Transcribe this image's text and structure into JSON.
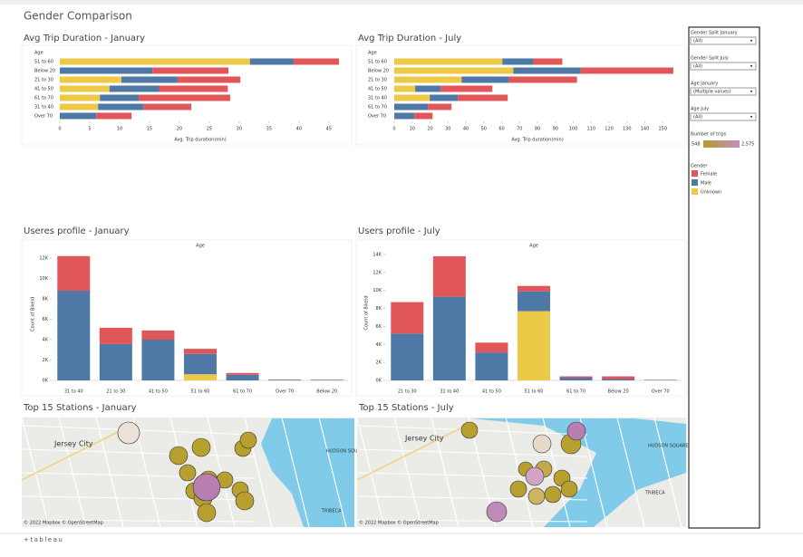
{
  "dashboard": {
    "title": "Gender Comparison",
    "footer": "+tableau",
    "filters": [
      {
        "label": "Gender Split January",
        "value": "(All)"
      },
      {
        "label": "Gender Split July",
        "value": "(All)"
      },
      {
        "label": "Age January",
        "value": "(Multiple values)"
      },
      {
        "label": "Age July",
        "value": "(All)"
      }
    ],
    "trips_legend": {
      "title": "Number of trips",
      "range": [
        {
          "value": 548,
          "label": "548"
        },
        {
          "value": 2575,
          "label": "2,575"
        }
      ]
    },
    "gender_legend_title": "Gender",
    "maps": [
      {
        "title": "Top 15 Stations - January",
        "labels": [
          "Jersey City",
          "HUDSON SQUARE",
          "TRIBECA"
        ],
        "credit": "© 2022 Mapbox © OpenStreetMap"
      },
      {
        "title": "Top 15 Stations - July",
        "labels": [
          "Jersey City",
          "HUDSON SQUARE",
          "TRIBECA"
        ],
        "credit": "© 2022 Mapbox © OpenStreetMap"
      }
    ]
  },
  "chart_data": [
    {
      "type": "bar",
      "orientation": "horizontal",
      "title": "Avg Trip Duration - January",
      "header": "Age",
      "xlabel": "Avg. Trip duration(min)",
      "categories": [
        "51 to 60",
        "Below 20",
        "21 to 30",
        "41 to 50",
        "61 to 70",
        "31 to 40",
        "Over 70"
      ],
      "series": [
        {
          "name": "Female",
          "color": "#e15759",
          "values": [
            7.6,
            12.7,
            10.5,
            11.5,
            15.3,
            8.0,
            5.9
          ]
        },
        {
          "name": "Male",
          "color": "#4e79a7",
          "values": [
            7.3,
            15.5,
            9.4,
            8.3,
            6.5,
            7.6,
            6.1
          ]
        },
        {
          "name": "Unknown",
          "color": "#edc948",
          "values": [
            31.8,
            null,
            10.3,
            8.3,
            6.7,
            6.4,
            null
          ]
        }
      ],
      "xlim": [
        0,
        47
      ],
      "xticks": [
        0,
        5,
        10,
        15,
        20,
        25,
        30,
        35,
        40,
        45
      ]
    },
    {
      "type": "bar",
      "orientation": "horizontal",
      "title": "Avg Trip Duration - July",
      "header": "Age",
      "xlabel": "Avg. Trip duration(min)",
      "categories": [
        "51 to 60",
        "Below 20",
        "21 to 30",
        "41 to 50",
        "31 to 40",
        "61 to 70",
        "Over 70"
      ],
      "series": [
        {
          "name": "Female",
          "color": "#e15759",
          "values": [
            16.2,
            51.8,
            38.1,
            28.9,
            27.9,
            13.2,
            10.2
          ]
        },
        {
          "name": "Male",
          "color": "#4e79a7",
          "values": [
            17.3,
            37.6,
            26.4,
            14.2,
            15.7,
            18.8,
            11.2
          ]
        },
        {
          "name": "Unknown",
          "color": "#edc948",
          "values": [
            60.4,
            66.5,
            37.6,
            11.7,
            19.8,
            null,
            null
          ]
        }
      ],
      "xlim": [
        0,
        160
      ],
      "xticks": [
        0,
        10,
        20,
        30,
        40,
        50,
        60,
        70,
        80,
        90,
        100,
        110,
        120,
        130,
        140,
        150
      ]
    },
    {
      "type": "bar",
      "orientation": "vertical",
      "title": "Useres profile - January",
      "header": "Age",
      "ylabel": "Count of Bikeid",
      "categories": [
        "31 to 40",
        "21 to 30",
        "41 to 50",
        "51 to 60",
        "61 to 70",
        "Over 70",
        "Below 20"
      ],
      "series": [
        {
          "name": "Female",
          "color": "#e15759",
          "values": [
            3400,
            1600,
            900,
            500,
            180,
            30,
            20
          ]
        },
        {
          "name": "Male",
          "color": "#4e79a7",
          "values": [
            8800,
            3560,
            4000,
            2000,
            550,
            60,
            50
          ]
        },
        {
          "name": "Unknown",
          "color": "#edc948",
          "values": [
            null,
            null,
            null,
            600,
            null,
            null,
            null
          ]
        }
      ],
      "ylim": [
        0,
        13000
      ],
      "yticks": [
        {
          "value": 0,
          "label": "0K"
        },
        {
          "value": 2000,
          "label": "2K"
        },
        {
          "value": 4000,
          "label": "4K"
        },
        {
          "value": 6000,
          "label": "6K"
        },
        {
          "value": 8000,
          "label": "8K"
        },
        {
          "value": 10000,
          "label": "10K"
        },
        {
          "value": 12000,
          "label": "12K"
        }
      ]
    },
    {
      "type": "bar",
      "orientation": "vertical",
      "title": "Users profile - July",
      "header": "Age",
      "ylabel": "Count of Bikeid",
      "categories": [
        "21 to 30",
        "31 to 40",
        "41 to 50",
        "51 to 60",
        "61 to 70",
        "Below 20",
        "Over 70"
      ],
      "series": [
        {
          "name": "Female",
          "color": "#e15759",
          "values": [
            3500,
            4500,
            1100,
            600,
            150,
            300,
            30
          ]
        },
        {
          "name": "Male",
          "color": "#4e79a7",
          "values": [
            5200,
            9300,
            3100,
            2200,
            300,
            150,
            40
          ]
        },
        {
          "name": "Unknown",
          "color": "#edc948",
          "values": [
            null,
            null,
            null,
            7700,
            null,
            null,
            null
          ]
        }
      ],
      "ylim": [
        0,
        15000
      ],
      "yticks": [
        {
          "value": 0,
          "label": "0K"
        },
        {
          "value": 2000,
          "label": "2K"
        },
        {
          "value": 4000,
          "label": "4K"
        },
        {
          "value": 6000,
          "label": "6K"
        },
        {
          "value": 8000,
          "label": "8K"
        },
        {
          "value": 10000,
          "label": "10K"
        },
        {
          "value": 12000,
          "label": "12K"
        },
        {
          "value": 14000,
          "label": "14K"
        }
      ]
    }
  ]
}
